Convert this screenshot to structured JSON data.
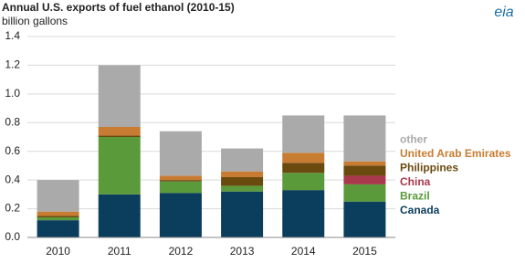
{
  "chart_data": {
    "type": "stacked_bar",
    "title": "Annual U.S. exports of fuel ethanol (2010-15)",
    "subtitle": "billion gallons",
    "logo": "eia",
    "categories": [
      "2010",
      "2011",
      "2012",
      "2013",
      "2014",
      "2015"
    ],
    "series": [
      {
        "name": "Canada",
        "color": "#0b3d5c",
        "values": [
          0.12,
          0.3,
          0.31,
          0.32,
          0.33,
          0.25
        ]
      },
      {
        "name": "Brazil",
        "color": "#5a9a3a",
        "values": [
          0.02,
          0.4,
          0.08,
          0.04,
          0.12,
          0.12
        ]
      },
      {
        "name": "China",
        "color": "#a8384c",
        "values": [
          0,
          0,
          0,
          0,
          0,
          0.06
        ]
      },
      {
        "name": "Philippines",
        "color": "#6b4a10",
        "values": [
          0.01,
          0.01,
          0.01,
          0.06,
          0.07,
          0.07
        ]
      },
      {
        "name": "United Arab Emirates",
        "color": "#c87c32",
        "values": [
          0.03,
          0.06,
          0.03,
          0.04,
          0.07,
          0.03
        ]
      },
      {
        "name": "other",
        "color": "#aaaaaa",
        "values": [
          0.22,
          0.43,
          0.31,
          0.16,
          0.26,
          0.32
        ]
      }
    ],
    "ylim": [
      0,
      1.4
    ],
    "yticks": [
      {
        "value": 0,
        "label": "0.0"
      },
      0.2,
      0.4,
      0.6,
      0.8,
      {
        "value": 1,
        "label": "1.0"
      },
      1.2,
      1.4
    ],
    "grid": true
  }
}
